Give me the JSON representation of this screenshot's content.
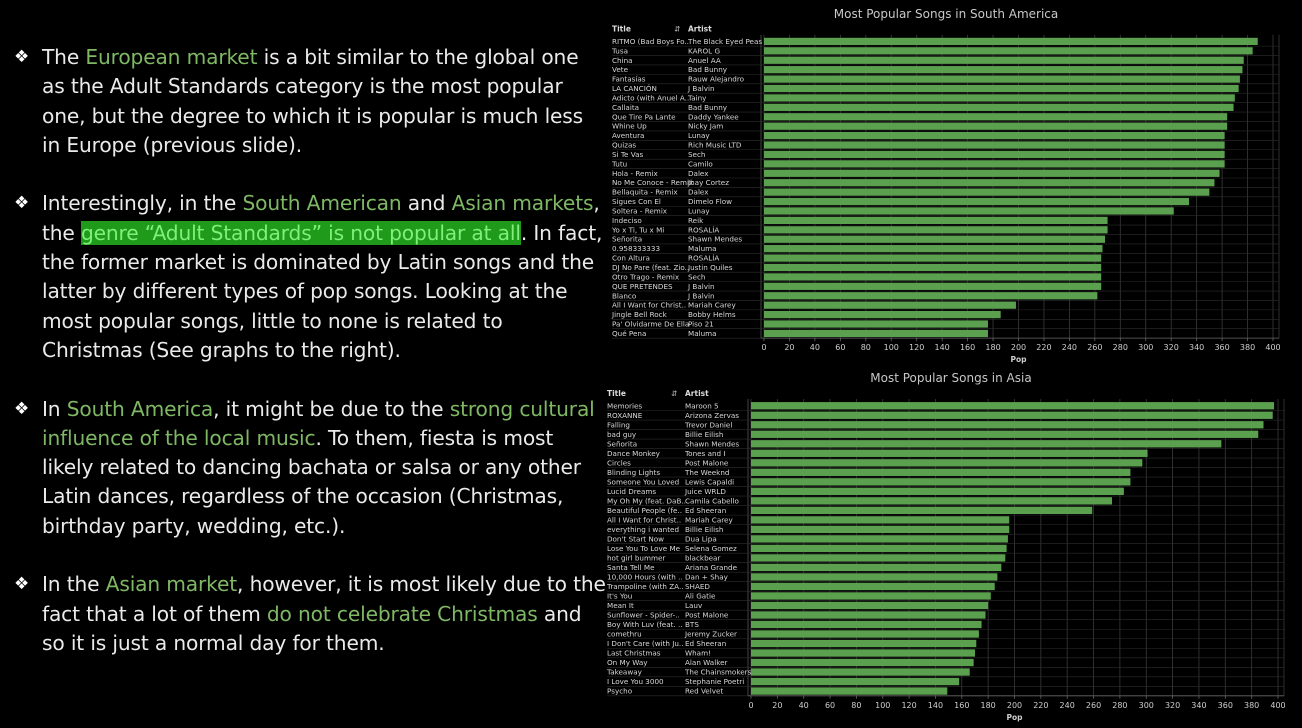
{
  "bullets": [
    {
      "parts": [
        {
          "t": "The "
        },
        {
          "t": "European market",
          "s": "hl"
        },
        {
          "t": " is a bit similar to the global one as the Adult Standards category is the most popular one, but the degree to which it is popular is much less in Europe (previous slide)."
        }
      ]
    },
    {
      "parts": [
        {
          "t": "Interestingly, in the "
        },
        {
          "t": "South American",
          "s": "hl"
        },
        {
          "t": " and "
        },
        {
          "t": "Asian markets",
          "s": "hl"
        },
        {
          "t": ", the "
        },
        {
          "t": "genre “Adult Standards” is not popular at all",
          "s": "hlbox"
        },
        {
          "t": ". In fact, the former market is dominated by Latin songs and the latter by different types of pop songs. Looking at the most popular songs, little to none is related to Christmas (See graphs to the right)."
        }
      ]
    },
    {
      "parts": [
        {
          "t": "In "
        },
        {
          "t": "South America",
          "s": "hl"
        },
        {
          "t": ", it might be due to the "
        },
        {
          "t": "strong cultural influence of the local music",
          "s": "hl"
        },
        {
          "t": ". To them, fiesta is most likely related to dancing bachata or salsa or any other Latin dances, regardless of the occasion (Christmas, birthday party, wedding, etc.)."
        }
      ]
    },
    {
      "parts": [
        {
          "t": "In the "
        },
        {
          "t": "Asian market",
          "s": "hl"
        },
        {
          "t": ", however, it is most likely due to the fact that a lot of them "
        },
        {
          "t": "do not celebrate Christmas",
          "s": "hl"
        },
        {
          "t": " and so it is just a normal day for them."
        }
      ]
    }
  ],
  "colors": {
    "bar": "#5aa04e",
    "highlight_text": "#7fb865",
    "highlight_bg": "#1f9a1b",
    "highlight_fg": "#7ff079"
  },
  "chart_data": [
    {
      "type": "bar",
      "orientation": "horizontal",
      "title": "Most Popular Songs in South America",
      "columns": [
        "Title",
        "Artist"
      ],
      "xlabel": "Pop",
      "xlim": [
        0,
        400
      ],
      "xticks": [
        0,
        20,
        40,
        60,
        80,
        100,
        120,
        140,
        160,
        180,
        200,
        220,
        240,
        260,
        280,
        300,
        320,
        340,
        360,
        380,
        400
      ],
      "grid": true,
      "rows": [
        {
          "title": "RITMO (Bad Boys Fo..",
          "artist": "The Black Eyed Peas",
          "value": 388
        },
        {
          "title": "Tusa",
          "artist": "KAROL G",
          "value": 384
        },
        {
          "title": "China",
          "artist": "Anuel AA",
          "value": 377
        },
        {
          "title": "Vete",
          "artist": "Bad Bunny",
          "value": 376
        },
        {
          "title": "Fantasías",
          "artist": "Rauw Alejandro",
          "value": 374
        },
        {
          "title": "LA CANCIÓN",
          "artist": "J Balvin",
          "value": 373
        },
        {
          "title": "Adicto (with Anuel A..",
          "artist": "Tainy",
          "value": 370
        },
        {
          "title": "Callaita",
          "artist": "Bad Bunny",
          "value": 369
        },
        {
          "title": "Que Tire Pa Lante",
          "artist": "Daddy Yankee",
          "value": 364
        },
        {
          "title": "Whine Up",
          "artist": "Nicky Jam",
          "value": 364
        },
        {
          "title": "Aventura",
          "artist": "Lunay",
          "value": 362
        },
        {
          "title": "Quizas",
          "artist": "Rich Music LTD",
          "value": 362
        },
        {
          "title": "Si Te Vas",
          "artist": "Sech",
          "value": 362
        },
        {
          "title": "Tutu",
          "artist": "Camilo",
          "value": 362
        },
        {
          "title": "Hola - Remix",
          "artist": "Dalex",
          "value": 358
        },
        {
          "title": "No Me Conoce - Remix",
          "artist": "Jhay Cortez",
          "value": 354
        },
        {
          "title": "Bellaquita - Remix",
          "artist": "Dalex",
          "value": 350
        },
        {
          "title": "Sigues Con El",
          "artist": "Dimelo Flow",
          "value": 334
        },
        {
          "title": "Soltera - Remix",
          "artist": "Lunay",
          "value": 322
        },
        {
          "title": "Indeciso",
          "artist": "Reik",
          "value": 270
        },
        {
          "title": "Yo x Ti, Tu x Mi",
          "artist": "ROSALÍA",
          "value": 270
        },
        {
          "title": "Señorita",
          "artist": "Shawn Mendes",
          "value": 268
        },
        {
          "title": "0.958333333",
          "artist": "Maluma",
          "value": 266
        },
        {
          "title": "Con Altura",
          "artist": "ROSALÍA",
          "value": 265
        },
        {
          "title": "DJ No Pare (feat. Zio..",
          "artist": "Justin Quiles",
          "value": 265
        },
        {
          "title": "Otro Trago - Remix",
          "artist": "Sech",
          "value": 265
        },
        {
          "title": "QUE PRETENDES",
          "artist": "J Balvin",
          "value": 265
        },
        {
          "title": "Blanco",
          "artist": "J Balvin",
          "value": 262
        },
        {
          "title": "All I Want for Christ..",
          "artist": "Mariah Carey",
          "value": 198
        },
        {
          "title": "Jingle Bell Rock",
          "artist": "Bobby Helms",
          "value": 186
        },
        {
          "title": "Pa' Olvidarme De Ella",
          "artist": "Piso 21",
          "value": 176
        },
        {
          "title": "Qué Pena",
          "artist": "Maluma",
          "value": 176
        }
      ]
    },
    {
      "type": "bar",
      "orientation": "horizontal",
      "title": "Most Popular Songs in Asia",
      "columns": [
        "Title",
        "Artist"
      ],
      "xlabel": "Pop",
      "xlim": [
        0,
        400
      ],
      "xticks": [
        0,
        20,
        40,
        60,
        80,
        100,
        120,
        140,
        160,
        180,
        200,
        220,
        240,
        260,
        280,
        300,
        320,
        340,
        360,
        380,
        400
      ],
      "grid": true,
      "rows": [
        {
          "title": "Memories",
          "artist": "Maroon 5",
          "value": 397
        },
        {
          "title": "ROXANNE",
          "artist": "Arizona Zervas",
          "value": 396
        },
        {
          "title": "Falling",
          "artist": "Trevor Daniel",
          "value": 389
        },
        {
          "title": "bad guy",
          "artist": "Billie Eilish",
          "value": 385
        },
        {
          "title": "Señorita",
          "artist": "Shawn Mendes",
          "value": 357
        },
        {
          "title": "Dance Monkey",
          "artist": "Tones and I",
          "value": 301
        },
        {
          "title": "Circles",
          "artist": "Post Malone",
          "value": 297
        },
        {
          "title": "Blinding Lights",
          "artist": "The Weeknd",
          "value": 288
        },
        {
          "title": "Someone You Loved",
          "artist": "Lewis Capaldi",
          "value": 288
        },
        {
          "title": "Lucid Dreams",
          "artist": "Juice WRLD",
          "value": 283
        },
        {
          "title": "My Oh My (feat. DaB..",
          "artist": "Camila Cabello",
          "value": 274
        },
        {
          "title": "Beautiful People (fe..",
          "artist": "Ed Sheeran",
          "value": 259
        },
        {
          "title": "All I Want for Christ..",
          "artist": "Mariah Carey",
          "value": 196
        },
        {
          "title": "everything i wanted",
          "artist": "Billie Eilish",
          "value": 196
        },
        {
          "title": "Don't Start Now",
          "artist": "Dua Lipa",
          "value": 195
        },
        {
          "title": "Lose You To Love Me",
          "artist": "Selena Gomez",
          "value": 194
        },
        {
          "title": "hot girl bummer",
          "artist": "blackbear",
          "value": 193
        },
        {
          "title": "Santa Tell Me",
          "artist": "Ariana Grande",
          "value": 190
        },
        {
          "title": "10,000 Hours (with ..",
          "artist": "Dan + Shay",
          "value": 187
        },
        {
          "title": "Trampoline (with ZA..",
          "artist": "SHAED",
          "value": 185
        },
        {
          "title": "It's You",
          "artist": "Ali Gatie",
          "value": 182
        },
        {
          "title": "Mean It",
          "artist": "Lauv",
          "value": 180
        },
        {
          "title": "Sunflower - Spider-..",
          "artist": "Post Malone",
          "value": 178
        },
        {
          "title": "Boy With Luv (feat. ..",
          "artist": "BTS",
          "value": 175
        },
        {
          "title": "comethru",
          "artist": "Jeremy Zucker",
          "value": 173
        },
        {
          "title": "I Don't Care (with Ju..",
          "artist": "Ed Sheeran",
          "value": 171
        },
        {
          "title": "Last Christmas",
          "artist": "Wham!",
          "value": 170
        },
        {
          "title": "On My Way",
          "artist": "Alan Walker",
          "value": 169
        },
        {
          "title": "Takeaway",
          "artist": "The Chainsmokers",
          "value": 166
        },
        {
          "title": "I Love You 3000",
          "artist": "Stephanie Poetri",
          "value": 158
        },
        {
          "title": "Psycho",
          "artist": "Red Velvet",
          "value": 149
        }
      ]
    }
  ]
}
